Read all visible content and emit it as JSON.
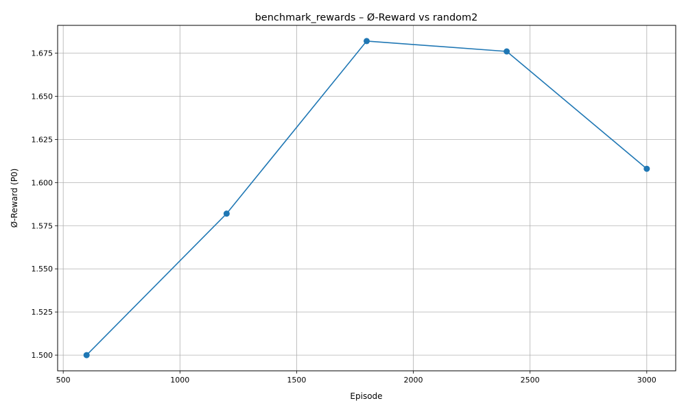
{
  "chart_data": {
    "type": "line",
    "title": "benchmark_rewards – Ø-Reward vs random2",
    "xlabel": "Episode",
    "ylabel": "Ø-Reward (P0)",
    "xlim": [
      476,
      3124
    ],
    "ylim": [
      1.4909,
      1.6911
    ],
    "xticks": [
      500,
      1000,
      1500,
      2000,
      2500,
      3000
    ],
    "xtick_labels": [
      "500",
      "1000",
      "1500",
      "2000",
      "2500",
      "3000"
    ],
    "yticks": [
      1.5,
      1.525,
      1.55,
      1.575,
      1.6,
      1.625,
      1.65,
      1.675
    ],
    "ytick_labels": [
      "1.500",
      "1.525",
      "1.550",
      "1.575",
      "1.600",
      "1.625",
      "1.650",
      "1.675"
    ],
    "grid": true,
    "series": [
      {
        "color": "#1f77b4",
        "marker": "circle",
        "x": [
          600,
          1200,
          1800,
          2400,
          3000
        ],
        "y": [
          1.5,
          1.582,
          1.682,
          1.676,
          1.608
        ]
      }
    ]
  }
}
